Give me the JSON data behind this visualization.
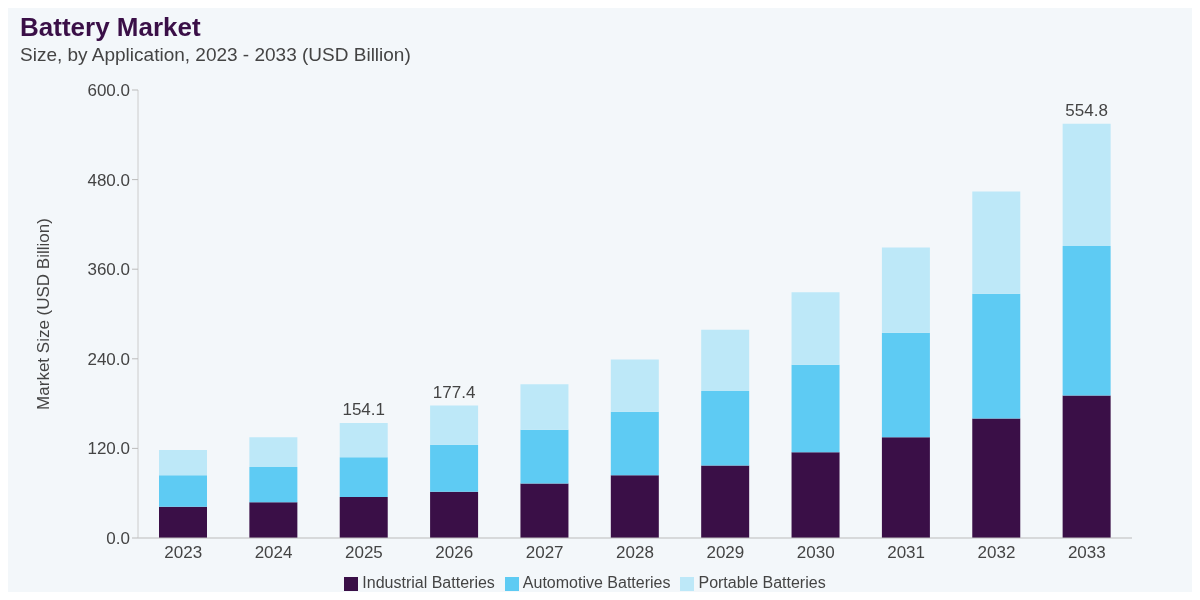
{
  "chart_data": {
    "type": "bar",
    "title": "Battery Market",
    "subtitle": "Size, by Application, 2023 - 2033 (USD Billion)",
    "ylabel": "Market Size (USD Billion)",
    "categories": [
      "2023",
      "2024",
      "2025",
      "2026",
      "2027",
      "2028",
      "2029",
      "2030",
      "2031",
      "2032",
      "2033"
    ],
    "stacked": true,
    "series": [
      {
        "name": "Industrial Batteries",
        "color": "#3a0f47",
        "values": [
          42,
          48,
          55,
          62,
          73,
          84,
          97,
          115,
          135,
          160,
          191
        ]
      },
      {
        "name": "Automotive Batteries",
        "color": "#5ecbf3",
        "values": [
          42,
          47,
          53,
          63,
          72,
          85,
          100,
          117,
          140,
          167,
          200
        ]
      },
      {
        "name": "Portable Batteries",
        "color": "#bde8f8",
        "values": [
          34,
          40,
          46.1,
          52.4,
          61,
          70,
          82,
          97,
          114,
          137,
          163.8
        ]
      }
    ],
    "totals": [
      null,
      null,
      "154.1",
      "177.4",
      null,
      null,
      null,
      null,
      null,
      null,
      "554.8"
    ],
    "ylim": [
      0,
      600
    ],
    "yticks": [
      {
        "value": 0,
        "label": "0.0"
      },
      {
        "value": 120,
        "label": "120.0"
      },
      {
        "value": 240,
        "label": "240.0"
      },
      {
        "value": 360,
        "label": "360.0"
      },
      {
        "value": 480,
        "label": "480.0"
      },
      {
        "value": 600,
        "label": "600.0"
      }
    ],
    "grid": false,
    "legend": "bottom"
  }
}
